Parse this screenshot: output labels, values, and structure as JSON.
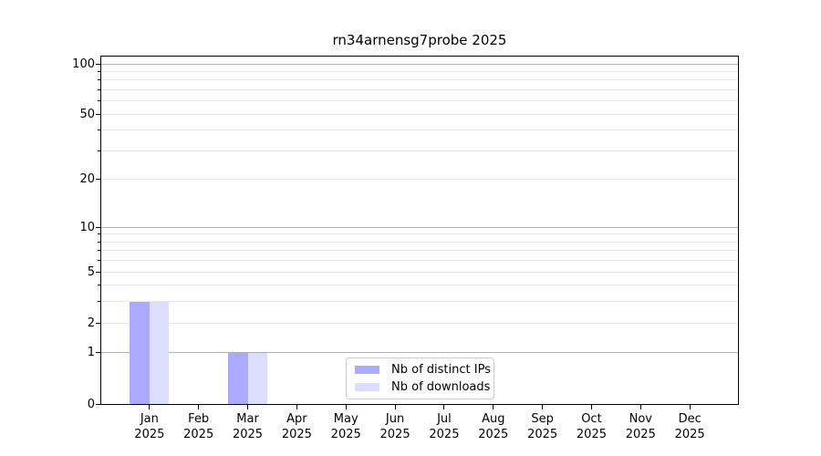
{
  "chart_data": {
    "type": "bar",
    "title": "rn34arnensg7probe 2025",
    "categories": [
      "Jan",
      "Feb",
      "Mar",
      "Apr",
      "May",
      "Jun",
      "Jul",
      "Aug",
      "Sep",
      "Oct",
      "Nov",
      "Dec"
    ],
    "category_year": "2025",
    "series": [
      {
        "name": "Nb of distinct IPs",
        "color": "#aaaaff",
        "values": [
          3,
          0,
          1,
          0,
          0,
          0,
          0,
          0,
          0,
          0,
          0,
          0
        ]
      },
      {
        "name": "Nb of downloads",
        "color": "#ddddff",
        "values": [
          3,
          0,
          1,
          0,
          0,
          0,
          0,
          0,
          0,
          0,
          0,
          0
        ]
      }
    ],
    "yscale": "log1p",
    "ylim": [
      0,
      112
    ],
    "yticks": [
      0,
      1,
      2,
      5,
      10,
      20,
      50,
      100
    ],
    "major_gridlines": [
      1,
      10,
      100
    ],
    "minor_gridlines": [
      2,
      3,
      4,
      5,
      6,
      7,
      8,
      9,
      20,
      30,
      40,
      50,
      60,
      70,
      80,
      90
    ],
    "grid": true,
    "legend_position": "lower center",
    "colors": {
      "major_grid": "#b0b0b0",
      "minor_grid": "#e9e9e9",
      "spine": "#000000",
      "background": "#ffffff",
      "text": "#000000"
    }
  }
}
